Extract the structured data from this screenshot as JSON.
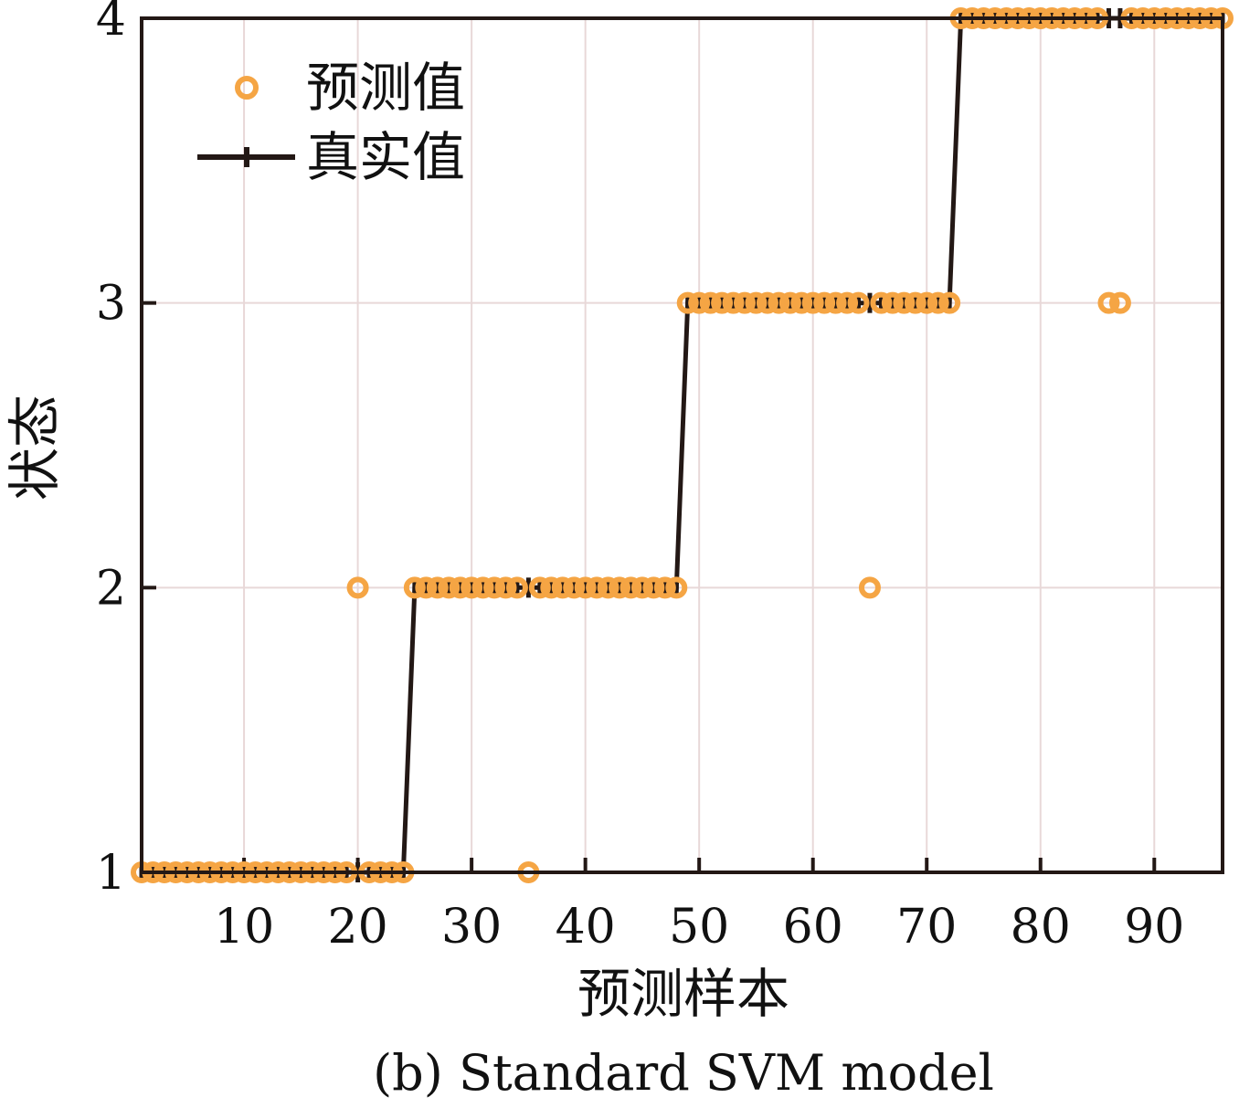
{
  "chart_data": {
    "type": "scatter",
    "caption": "(b) Standard SVM model",
    "xlabel": "预测样本",
    "ylabel": "状态",
    "xlim": [
      1,
      96
    ],
    "ylim": [
      1,
      4
    ],
    "xticks": [
      10,
      20,
      30,
      40,
      50,
      60,
      70,
      80,
      90
    ],
    "yticks": [
      1,
      2,
      3,
      4
    ],
    "grid": true,
    "legend_position": "top-left",
    "colors": {
      "predicted": "#f5a544",
      "actual": "#231815",
      "grid": "#e8d8d8"
    },
    "series": [
      {
        "name": "预测值",
        "kind": "scatter",
        "marker": "open-circle",
        "x": [
          1,
          2,
          3,
          4,
          5,
          6,
          7,
          8,
          9,
          10,
          11,
          12,
          13,
          14,
          15,
          16,
          17,
          18,
          19,
          20,
          21,
          22,
          23,
          24,
          25,
          26,
          27,
          28,
          29,
          30,
          31,
          32,
          33,
          34,
          35,
          36,
          37,
          38,
          39,
          40,
          41,
          42,
          43,
          44,
          45,
          46,
          47,
          48,
          49,
          50,
          51,
          52,
          53,
          54,
          55,
          56,
          57,
          58,
          59,
          60,
          61,
          62,
          63,
          64,
          65,
          66,
          67,
          68,
          69,
          70,
          71,
          72,
          73,
          74,
          75,
          76,
          77,
          78,
          79,
          80,
          81,
          82,
          83,
          84,
          85,
          86,
          87,
          88,
          89,
          90,
          91,
          92,
          93,
          94,
          95,
          96
        ],
        "y": [
          1,
          1,
          1,
          1,
          1,
          1,
          1,
          1,
          1,
          1,
          1,
          1,
          1,
          1,
          1,
          1,
          1,
          1,
          1,
          2,
          1,
          1,
          1,
          1,
          2,
          2,
          2,
          2,
          2,
          2,
          2,
          2,
          2,
          2,
          1,
          2,
          2,
          2,
          2,
          2,
          2,
          2,
          2,
          2,
          2,
          2,
          2,
          2,
          3,
          3,
          3,
          3,
          3,
          3,
          3,
          3,
          3,
          3,
          3,
          3,
          3,
          3,
          3,
          3,
          2,
          3,
          3,
          3,
          3,
          3,
          3,
          3,
          4,
          4,
          4,
          4,
          4,
          4,
          4,
          4,
          4,
          4,
          4,
          4,
          4,
          3,
          3,
          4,
          4,
          4,
          4,
          4,
          4,
          4,
          4,
          4
        ]
      },
      {
        "name": "真实值",
        "kind": "line",
        "marker": "plus",
        "x": [
          1,
          2,
          3,
          4,
          5,
          6,
          7,
          8,
          9,
          10,
          11,
          12,
          13,
          14,
          15,
          16,
          17,
          18,
          19,
          20,
          21,
          22,
          23,
          24,
          25,
          26,
          27,
          28,
          29,
          30,
          31,
          32,
          33,
          34,
          35,
          36,
          37,
          38,
          39,
          40,
          41,
          42,
          43,
          44,
          45,
          46,
          47,
          48,
          49,
          50,
          51,
          52,
          53,
          54,
          55,
          56,
          57,
          58,
          59,
          60,
          61,
          62,
          63,
          64,
          65,
          66,
          67,
          68,
          69,
          70,
          71,
          72,
          73,
          74,
          75,
          76,
          77,
          78,
          79,
          80,
          81,
          82,
          83,
          84,
          85,
          86,
          87,
          88,
          89,
          90,
          91,
          92,
          93,
          94,
          95,
          96
        ],
        "y": [
          1,
          1,
          1,
          1,
          1,
          1,
          1,
          1,
          1,
          1,
          1,
          1,
          1,
          1,
          1,
          1,
          1,
          1,
          1,
          1,
          1,
          1,
          1,
          1,
          2,
          2,
          2,
          2,
          2,
          2,
          2,
          2,
          2,
          2,
          2,
          2,
          2,
          2,
          2,
          2,
          2,
          2,
          2,
          2,
          2,
          2,
          2,
          2,
          3,
          3,
          3,
          3,
          3,
          3,
          3,
          3,
          3,
          3,
          3,
          3,
          3,
          3,
          3,
          3,
          3,
          3,
          3,
          3,
          3,
          3,
          3,
          3,
          4,
          4,
          4,
          4,
          4,
          4,
          4,
          4,
          4,
          4,
          4,
          4,
          4,
          4,
          4,
          4,
          4,
          4,
          4,
          4,
          4,
          4,
          4,
          4
        ]
      }
    ]
  }
}
